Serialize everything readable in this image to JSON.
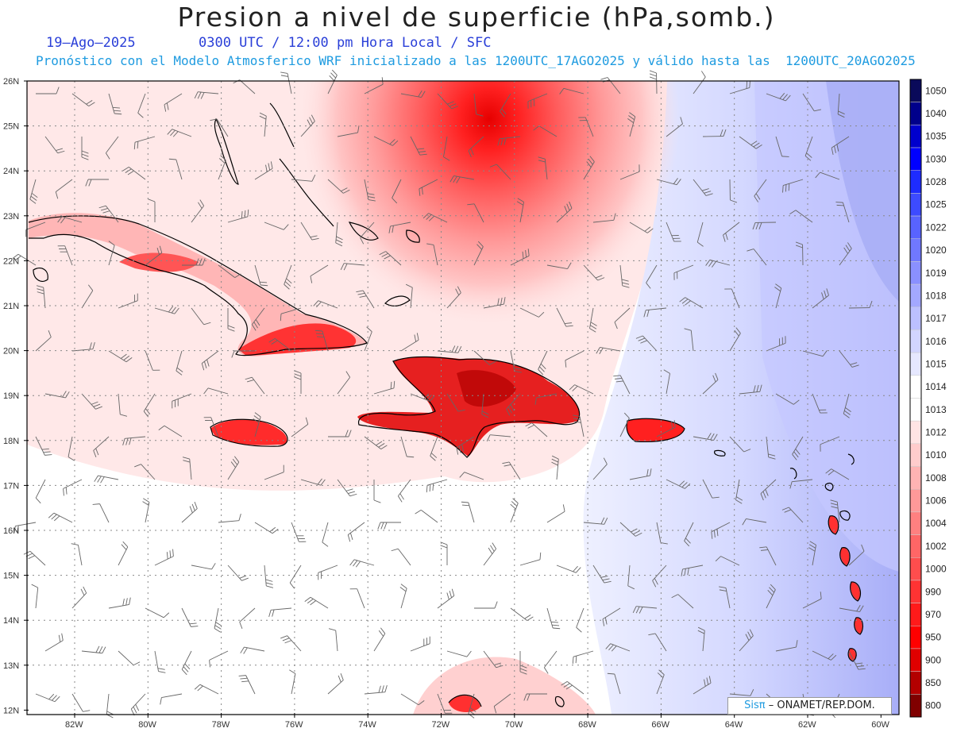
{
  "title": "Presion a nivel de superficie (hPa,somb.)",
  "date": "19–Ago–2025",
  "time_info": "0300 UTC / 12:00 pm Hora Local / SFC",
  "model_info": "Pronóstico con el Modelo Atmosferico WRF inicializado a las 1200UTC_17AGO2025 y válido hasta las  1200UTC_20AGO2025",
  "credit": {
    "brand": "Sisπ",
    "org": "– ONAMET/REP.DOM."
  },
  "lat_labels": [
    "26N",
    "25N",
    "24N",
    "23N",
    "22N",
    "21N",
    "20N",
    "19N",
    "18N",
    "17N",
    "16N",
    "15N",
    "14N",
    "13N",
    "12N"
  ],
  "lon_labels": [
    "82W",
    "80W",
    "78W",
    "76W",
    "74W",
    "72W",
    "70W",
    "68W",
    "66W",
    "64W",
    "62W",
    "60W"
  ],
  "colorbar": {
    "levels": [
      "1050",
      "1040",
      "1035",
      "1030",
      "1028",
      "1025",
      "1022",
      "1020",
      "1019",
      "1018",
      "1017",
      "1016",
      "1015",
      "1014",
      "1013",
      "1012",
      "1010",
      "1008",
      "1006",
      "1004",
      "1002",
      "1000",
      "990",
      "970",
      "950",
      "900",
      "850",
      "800"
    ],
    "colors": [
      "#0a0a5a",
      "#00008b",
      "#0000cd",
      "#0000ff",
      "#1e2cff",
      "#3d4bff",
      "#5863ff",
      "#7078ff",
      "#8a90ff",
      "#a3a8ff",
      "#bcc0ff",
      "#d2d5ff",
      "#e6e8ff",
      "#ffffff",
      "#ffffff",
      "#ffe4e4",
      "#ffcccc",
      "#ffb3b3",
      "#ff9999",
      "#ff8080",
      "#ff6666",
      "#ff4d4d",
      "#ff3333",
      "#ff1a1a",
      "#ff0000",
      "#e00000",
      "#b30000",
      "#800000"
    ]
  }
}
